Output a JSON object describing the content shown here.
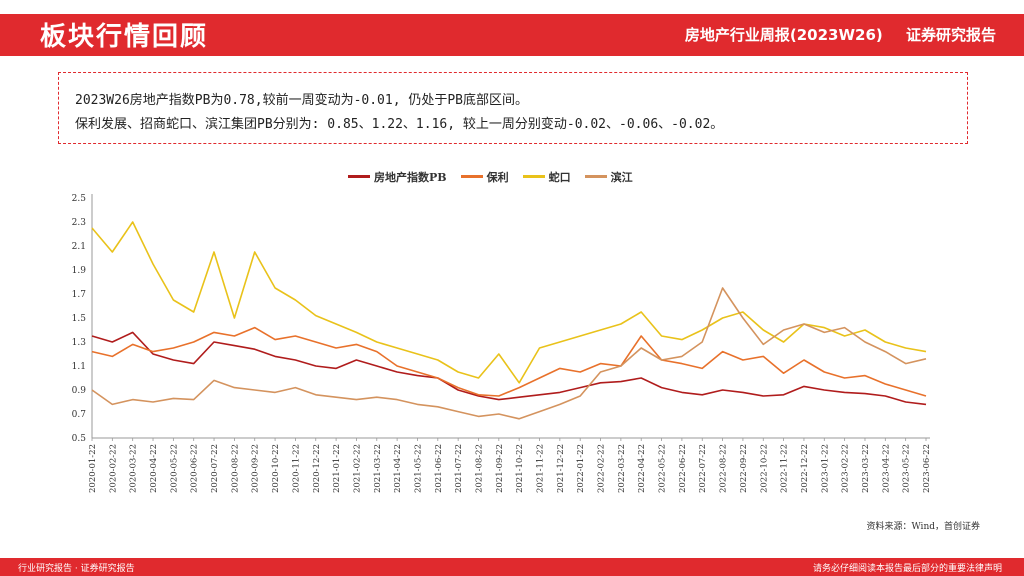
{
  "header": {
    "title": "板块行情回顾",
    "report_name": "房地产行业周报(2023W26)",
    "report_type": "证券研究报告"
  },
  "summary": {
    "line1": "2023W26房地产指数PB为0.78,较前一周变动为-0.01, 仍处于PB底部区间。",
    "line2": "保利发展、招商蛇口、滨江集团PB分别为: 0.85、1.22、1.16, 较上一周分别变动-0.02、-0.06、-0.02。"
  },
  "chart_data": {
    "type": "line",
    "title": "",
    "xlabel": "",
    "ylabel": "",
    "ylim": [
      0.5,
      2.5
    ],
    "yticks": [
      "2.5",
      "2.3",
      "2.1",
      "1.9",
      "1.7",
      "1.5",
      "1.3",
      "1.1",
      "0.9",
      "0.7",
      "0.5"
    ],
    "x": [
      "2020-01-22",
      "2020-02-22",
      "2020-03-22",
      "2020-04-22",
      "2020-05-22",
      "2020-06-22",
      "2020-07-22",
      "2020-08-22",
      "2020-09-22",
      "2020-10-22",
      "2020-11-22",
      "2020-12-22",
      "2021-01-22",
      "2021-02-22",
      "2021-03-22",
      "2021-04-22",
      "2021-05-22",
      "2021-06-22",
      "2021-07-22",
      "2021-08-22",
      "2021-09-22",
      "2021-10-22",
      "2021-11-22",
      "2021-12-22",
      "2022-01-22",
      "2022-02-22",
      "2022-03-22",
      "2022-04-22",
      "2022-05-22",
      "2022-06-22",
      "2022-07-22",
      "2022-08-22",
      "2022-09-22",
      "2022-10-22",
      "2022-11-22",
      "2022-12-22",
      "2023-01-22",
      "2023-02-22",
      "2023-03-22",
      "2023-04-22",
      "2023-05-22",
      "2023-06-22"
    ],
    "legend_position": "top",
    "grid": false,
    "series": [
      {
        "name": "房地产指数PB",
        "color": "#b01c1c",
        "values": [
          1.35,
          1.3,
          1.38,
          1.2,
          1.15,
          1.12,
          1.3,
          1.27,
          1.24,
          1.18,
          1.15,
          1.1,
          1.08,
          1.15,
          1.1,
          1.05,
          1.02,
          1.0,
          0.9,
          0.85,
          0.82,
          0.84,
          0.86,
          0.88,
          0.92,
          0.96,
          0.97,
          1.0,
          0.92,
          0.88,
          0.86,
          0.9,
          0.88,
          0.85,
          0.86,
          0.93,
          0.9,
          0.88,
          0.87,
          0.85,
          0.8,
          0.78
        ]
      },
      {
        "name": "保利",
        "color": "#e8712b",
        "values": [
          1.22,
          1.18,
          1.28,
          1.22,
          1.25,
          1.3,
          1.38,
          1.35,
          1.42,
          1.32,
          1.35,
          1.3,
          1.25,
          1.28,
          1.22,
          1.1,
          1.05,
          1.0,
          0.92,
          0.86,
          0.85,
          0.92,
          1.0,
          1.08,
          1.05,
          1.12,
          1.1,
          1.35,
          1.15,
          1.12,
          1.08,
          1.22,
          1.15,
          1.18,
          1.04,
          1.15,
          1.05,
          1.0,
          1.02,
          0.95,
          0.9,
          0.85
        ]
      },
      {
        "name": "蛇口",
        "color": "#e9c21a",
        "values": [
          2.25,
          2.05,
          2.3,
          1.95,
          1.65,
          1.55,
          2.05,
          1.5,
          2.05,
          1.75,
          1.65,
          1.52,
          1.45,
          1.38,
          1.3,
          1.25,
          1.2,
          1.15,
          1.05,
          1.0,
          1.2,
          0.96,
          1.25,
          1.3,
          1.35,
          1.4,
          1.45,
          1.55,
          1.35,
          1.32,
          1.4,
          1.5,
          1.55,
          1.4,
          1.3,
          1.45,
          1.42,
          1.35,
          1.4,
          1.3,
          1.25,
          1.22
        ]
      },
      {
        "name": "滨江",
        "color": "#d4935e",
        "values": [
          0.9,
          0.78,
          0.82,
          0.8,
          0.83,
          0.82,
          0.98,
          0.92,
          0.9,
          0.88,
          0.92,
          0.86,
          0.84,
          0.82,
          0.84,
          0.82,
          0.78,
          0.76,
          0.72,
          0.68,
          0.7,
          0.66,
          0.72,
          0.78,
          0.85,
          1.05,
          1.1,
          1.25,
          1.15,
          1.18,
          1.3,
          1.75,
          1.5,
          1.28,
          1.4,
          1.45,
          1.38,
          1.42,
          1.3,
          1.22,
          1.12,
          1.16
        ]
      }
    ]
  },
  "source": "资料来源：Wind，首创证券",
  "footer": {
    "left": "行业研究报告 · 证券研究报告",
    "right": "请务必仔细阅读本报告最后部分的重要法律声明"
  }
}
